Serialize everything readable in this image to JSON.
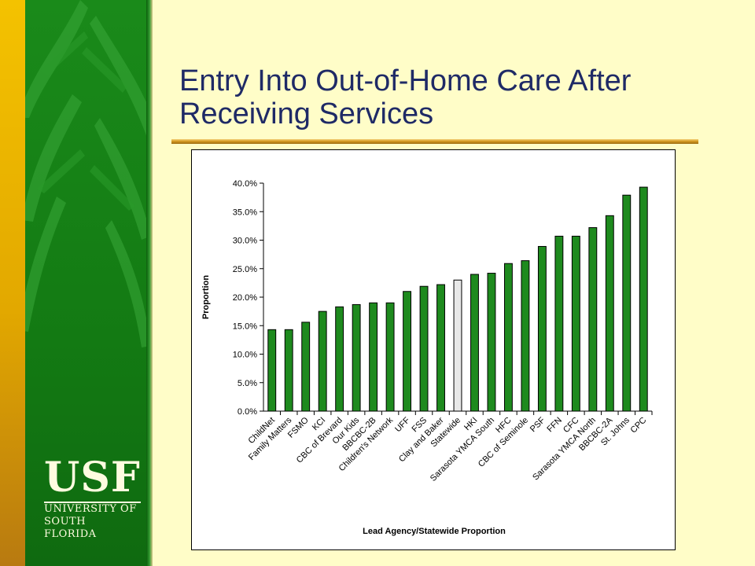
{
  "slide": {
    "title": "Entry Into Out-of-Home Care After Receiving Services"
  },
  "logo": {
    "mark": "USF",
    "line1": "UNIVERSITY OF",
    "line2": "SOUTH FLORIDA"
  },
  "colors": {
    "background": "#fffdc8",
    "panel_green": "#1a8a1a",
    "bar_fill": "#1e8a1e",
    "statewide_fill": "#e8e8e8",
    "title_text": "#1f2a66"
  },
  "chart_data": {
    "type": "bar",
    "title": "",
    "xlabel": "Lead Agency/Statewide Proportion",
    "ylabel": "Proportion",
    "ylim": [
      0,
      40
    ],
    "yticks": [
      "0.0%",
      "5.0%",
      "10.0%",
      "15.0%",
      "20.0%",
      "25.0%",
      "30.0%",
      "35.0%",
      "40.0%"
    ],
    "grid": false,
    "categories": [
      "ChildNet",
      "Family Matters",
      "FSMO",
      "KCI",
      "CBC of Brevard",
      "Our Kids",
      "BBCBC-2B",
      "Children's Network",
      "UFF",
      "FSS",
      "Clay and Baker",
      "Statewide",
      "HKI",
      "Sarasota YMCA South",
      "HFC",
      "CBC of Seminole",
      "PSF",
      "FFN",
      "CFC",
      "Sarasota YMCA North",
      "BBCBC-2A",
      "St. Johns",
      "CPC"
    ],
    "values": [
      14.3,
      14.3,
      15.6,
      17.5,
      18.3,
      18.7,
      19.0,
      19.0,
      21.0,
      21.9,
      22.2,
      23.0,
      24.0,
      24.2,
      25.9,
      26.4,
      28.9,
      30.7,
      30.7,
      32.2,
      34.3,
      37.9,
      39.3
    ],
    "highlight_category": "Statewide"
  }
}
